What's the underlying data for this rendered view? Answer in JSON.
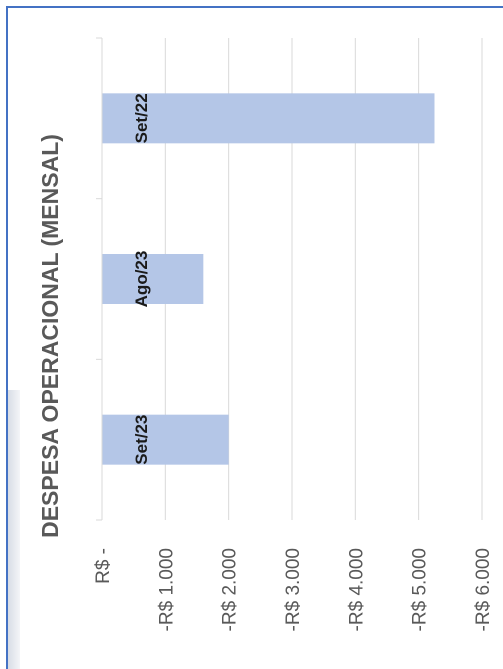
{
  "chart_data": {
    "type": "bar",
    "orientation": "rotated-90",
    "title": "DESPESA OPERACIONAL (MENSAL)",
    "categories": [
      "Set/22",
      "Ago/23",
      "Set/23"
    ],
    "values": [
      -5250,
      -1600,
      -2000
    ],
    "value_ticks": [
      0,
      -1000,
      -2000,
      -3000,
      -4000,
      -5000,
      -6000
    ],
    "value_tick_labels": [
      "R$ -",
      "-R$ 1.000",
      "-R$ 2.000",
      "-R$ 3.000",
      "-R$ 4.000",
      "-R$ 5.000",
      "-R$ 6.000"
    ],
    "ylim": [
      -6000,
      0
    ],
    "grid": true,
    "legend": "none",
    "bar_color": "#b4c6e7",
    "grid_color": "#d9d9d9"
  }
}
